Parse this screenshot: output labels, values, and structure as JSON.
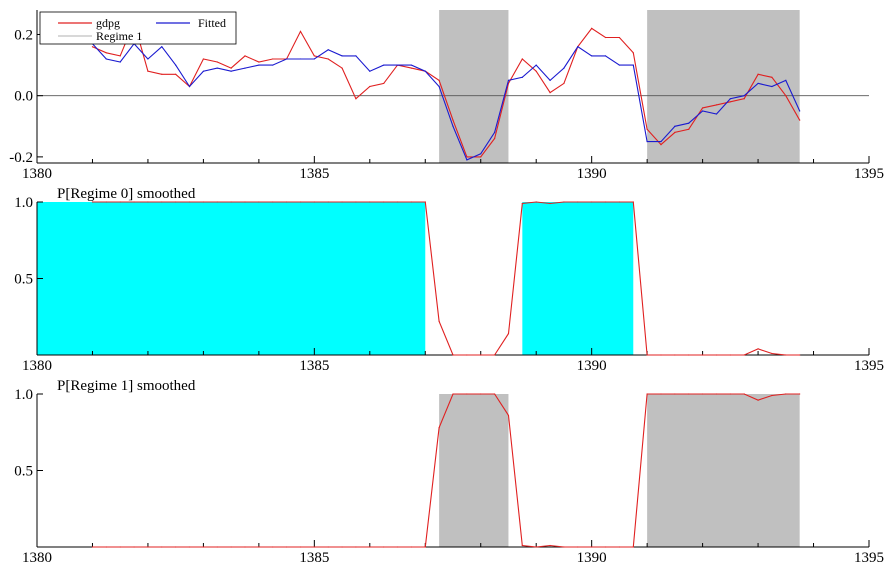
{
  "chart_data": [
    {
      "type": "line",
      "title": "",
      "xlim": [
        1380,
        1395
      ],
      "ylim": [
        -0.22,
        0.28
      ],
      "x_ticks": [
        1380,
        1385,
        1390,
        1395
      ],
      "x_tick_labels": [
        "1380",
        "1385",
        "1390",
        "1395"
      ],
      "y_ticks": [
        0.2,
        0.0,
        -0.2
      ],
      "y_tick_labels": [
        "0.2",
        "0.0",
        "-0.2"
      ],
      "zero_line": true,
      "legend": {
        "placement": "top-left",
        "entries": [
          {
            "label": "gdpg",
            "color": "#e02020"
          },
          {
            "label": "Fitted",
            "color": "#1a1ad0"
          },
          {
            "label": "Regime 1",
            "color": "#c0c0c0"
          }
        ]
      },
      "regime_shading": [
        [
          1387.25,
          1388.5
        ],
        [
          1391.0,
          1393.75
        ]
      ],
      "x": [
        1381.0,
        1381.25,
        1381.5,
        1381.75,
        1382.0,
        1382.25,
        1382.5,
        1382.75,
        1383.0,
        1383.25,
        1383.5,
        1383.75,
        1384.0,
        1384.25,
        1384.5,
        1384.75,
        1385.0,
        1385.25,
        1385.5,
        1385.75,
        1386.0,
        1386.25,
        1386.5,
        1386.75,
        1387.0,
        1387.25,
        1387.5,
        1387.75,
        1388.0,
        1388.25,
        1388.5,
        1388.75,
        1389.0,
        1389.25,
        1389.5,
        1389.75,
        1390.0,
        1390.25,
        1390.5,
        1390.75,
        1391.0,
        1391.25,
        1391.5,
        1391.75,
        1392.0,
        1392.25,
        1392.5,
        1392.75,
        1393.0,
        1393.25,
        1393.5,
        1393.75
      ],
      "series": [
        {
          "name": "gdpg",
          "color": "#e02020",
          "values": [
            0.16,
            0.14,
            0.13,
            0.24,
            0.08,
            0.07,
            0.07,
            0.03,
            0.12,
            0.11,
            0.09,
            0.13,
            0.11,
            0.12,
            0.12,
            0.21,
            0.13,
            0.12,
            0.09,
            -0.01,
            0.03,
            0.04,
            0.1,
            0.09,
            0.08,
            0.05,
            -0.08,
            -0.2,
            -0.2,
            -0.14,
            0.04,
            0.12,
            0.08,
            0.01,
            0.04,
            0.16,
            0.22,
            0.19,
            0.19,
            0.14,
            -0.11,
            -0.16,
            -0.12,
            -0.11,
            -0.04,
            -0.03,
            -0.02,
            -0.01,
            0.07,
            0.06,
            0.0,
            -0.08
          ]
        },
        {
          "name": "Fitted",
          "color": "#1a1ad0",
          "values": [
            0.17,
            0.12,
            0.11,
            0.17,
            0.12,
            0.16,
            0.1,
            0.03,
            0.08,
            0.09,
            0.08,
            0.09,
            0.1,
            0.1,
            0.12,
            0.12,
            0.12,
            0.15,
            0.13,
            0.13,
            0.08,
            0.1,
            0.1,
            0.1,
            0.08,
            0.03,
            -0.1,
            -0.21,
            -0.19,
            -0.12,
            0.05,
            0.06,
            0.1,
            0.05,
            0.09,
            0.16,
            0.13,
            0.13,
            0.1,
            0.1,
            -0.15,
            -0.15,
            -0.1,
            -0.09,
            -0.05,
            -0.06,
            -0.01,
            0.0,
            0.04,
            0.03,
            0.05,
            -0.05
          ]
        }
      ]
    },
    {
      "type": "area",
      "title": "P[Regime 0] smoothed",
      "xlim": [
        1380,
        1395
      ],
      "ylim": [
        0,
        1
      ],
      "x_ticks": [
        1380,
        1385,
        1390,
        1395
      ],
      "x_tick_labels": [
        "1380",
        "1385",
        "1390",
        "1395"
      ],
      "y_ticks": [
        1.0,
        0.5
      ],
      "y_tick_labels": [
        "1.0",
        "0.5"
      ],
      "regime_shading_color": "#00ffff",
      "regime_shading": [
        [
          1380.0,
          1387.0
        ],
        [
          1388.75,
          1390.75
        ]
      ],
      "x": [
        1381.0,
        1381.25,
        1381.5,
        1381.75,
        1382.0,
        1382.25,
        1382.5,
        1382.75,
        1383.0,
        1383.25,
        1383.5,
        1383.75,
        1384.0,
        1384.25,
        1384.5,
        1384.75,
        1385.0,
        1385.25,
        1385.5,
        1385.75,
        1386.0,
        1386.25,
        1386.5,
        1386.75,
        1387.0,
        1387.25,
        1387.5,
        1387.75,
        1388.0,
        1388.25,
        1388.5,
        1388.75,
        1389.0,
        1389.25,
        1389.5,
        1389.75,
        1390.0,
        1390.25,
        1390.5,
        1390.75,
        1391.0,
        1391.25,
        1391.5,
        1391.75,
        1392.0,
        1392.25,
        1392.5,
        1392.75,
        1393.0,
        1393.25,
        1393.5,
        1393.75
      ],
      "series": [
        {
          "color": "#e02020",
          "values": [
            1,
            1,
            1,
            1,
            1,
            1,
            1,
            1,
            1,
            1,
            1,
            1,
            1,
            1,
            1,
            1,
            1,
            1,
            1,
            1,
            1,
            1,
            1,
            1,
            1,
            0.22,
            0,
            0,
            0,
            0,
            0.14,
            0.99,
            1,
            0.99,
            1,
            1,
            1,
            1,
            1,
            1,
            0,
            0,
            0,
            0,
            0,
            0,
            0,
            0,
            0.04,
            0.01,
            0,
            0
          ]
        }
      ]
    },
    {
      "type": "area",
      "title": "P[Regime 1] smoothed",
      "xlim": [
        1380,
        1395
      ],
      "ylim": [
        0,
        1
      ],
      "x_ticks": [
        1380,
        1385,
        1390,
        1395
      ],
      "x_tick_labels": [
        "1380",
        "1385",
        "1390",
        "1395"
      ],
      "y_ticks": [
        1.0,
        0.5
      ],
      "y_tick_labels": [
        "1.0",
        "0.5"
      ],
      "regime_shading_color": "#c0c0c0",
      "regime_shading": [
        [
          1387.25,
          1388.5
        ],
        [
          1391.0,
          1393.75
        ]
      ],
      "x": [
        1381.0,
        1381.25,
        1381.5,
        1381.75,
        1382.0,
        1382.25,
        1382.5,
        1382.75,
        1383.0,
        1383.25,
        1383.5,
        1383.75,
        1384.0,
        1384.25,
        1384.5,
        1384.75,
        1385.0,
        1385.25,
        1385.5,
        1385.75,
        1386.0,
        1386.25,
        1386.5,
        1386.75,
        1387.0,
        1387.25,
        1387.5,
        1387.75,
        1388.0,
        1388.25,
        1388.5,
        1388.75,
        1389.0,
        1389.25,
        1389.5,
        1389.75,
        1390.0,
        1390.25,
        1390.5,
        1390.75,
        1391.0,
        1391.25,
        1391.5,
        1391.75,
        1392.0,
        1392.25,
        1392.5,
        1392.75,
        1393.0,
        1393.25,
        1393.5,
        1393.75
      ],
      "series": [
        {
          "color": "#e02020",
          "values": [
            0,
            0,
            0,
            0,
            0,
            0,
            0,
            0,
            0,
            0,
            0,
            0,
            0,
            0,
            0,
            0,
            0,
            0,
            0,
            0,
            0,
            0,
            0,
            0,
            0,
            0.78,
            1,
            1,
            1,
            1,
            0.86,
            0.01,
            0,
            0.01,
            0,
            0,
            0,
            0,
            0,
            0,
            1,
            1,
            1,
            1,
            1,
            1,
            1,
            1,
            0.96,
            0.99,
            1,
            1
          ]
        }
      ]
    }
  ]
}
